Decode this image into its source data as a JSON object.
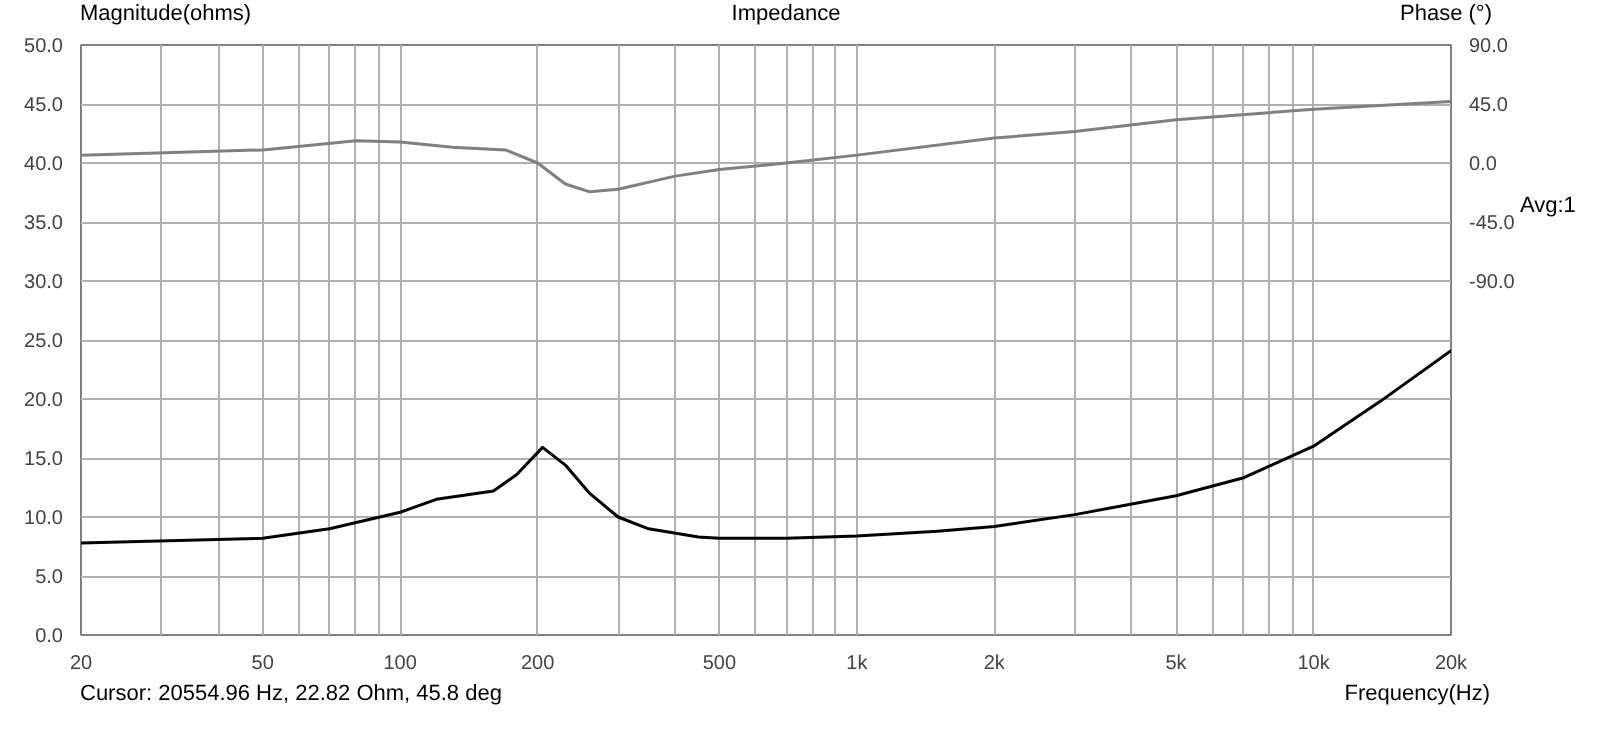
{
  "chart_data": {
    "type": "line",
    "title": "Impedance",
    "xlabel": "Frequency(Hz)",
    "ylabel": "Magnitude(ohms)",
    "y2label": "Phase (°)",
    "annotations": [
      "Cursor: 20554.96 Hz, 22.82 Ohm, 45.8 deg",
      "Avg:1"
    ],
    "log": "x",
    "grid": true,
    "line_style": "solid",
    "marker": "none",
    "xlim": [
      20,
      20000
    ],
    "xticks": [
      20,
      {
        "value": 30,
        "label": null
      },
      {
        "value": 40,
        "label": null
      },
      50,
      {
        "value": 60,
        "label": null
      },
      {
        "value": 70,
        "label": null
      },
      {
        "value": 80,
        "label": null
      },
      {
        "value": 90,
        "label": null
      },
      100,
      200,
      {
        "value": 300,
        "label": null
      },
      {
        "value": 400,
        "label": null
      },
      500,
      {
        "value": 600,
        "label": null
      },
      {
        "value": 700,
        "label": null
      },
      {
        "value": 800,
        "label": null
      },
      {
        "value": 900,
        "label": null
      },
      {
        "value": 1000,
        "label": "1k"
      },
      {
        "value": 2000,
        "label": "2k"
      },
      {
        "value": 3000,
        "label": null
      },
      {
        "value": 4000,
        "label": null
      },
      {
        "value": 5000,
        "label": "5k"
      },
      {
        "value": 6000,
        "label": null
      },
      {
        "value": 7000,
        "label": null
      },
      {
        "value": 8000,
        "label": null
      },
      {
        "value": 9000,
        "label": null
      },
      {
        "value": 10000,
        "label": "10k"
      },
      {
        "value": 20000,
        "label": "20k"
      }
    ],
    "ylim": [
      0,
      50
    ],
    "yticks": [
      {
        "value": 0,
        "label": "0.0"
      },
      {
        "value": 5,
        "label": "5.0"
      },
      {
        "value": 10,
        "label": "10.0"
      },
      {
        "value": 15,
        "label": "15.0"
      },
      {
        "value": 20,
        "label": "20.0"
      },
      {
        "value": 25,
        "label": "25.0"
      },
      {
        "value": 30,
        "label": "30.0"
      },
      {
        "value": 35,
        "label": "35.0"
      },
      {
        "value": 40,
        "label": "40.0"
      },
      {
        "value": 45,
        "label": "45.0"
      },
      {
        "value": 50,
        "label": "50.0"
      }
    ],
    "y2lim": [
      -360,
      90
    ],
    "y2ticks": [
      {
        "value": 90,
        "label": "90.0"
      },
      {
        "value": 45,
        "label": "45.0"
      },
      {
        "value": 0,
        "label": "0.0"
      },
      {
        "value": -45,
        "label": "-45.0"
      },
      {
        "value": -90,
        "label": "-90.0"
      }
    ],
    "series": [
      {
        "color": "#000000",
        "x": [
          20,
          50,
          70,
          100,
          120,
          160,
          180,
          205,
          230,
          260,
          300,
          350,
          450,
          500,
          700,
          1000,
          1500,
          2000,
          3000,
          5000,
          7000,
          10000,
          14000,
          20000
        ],
        "values": [
          7.8,
          8.2,
          9,
          10.4,
          11.5,
          12.2,
          13.6,
          15.9,
          14.4,
          12,
          10,
          9,
          8.3,
          8.2,
          8.2,
          8.4,
          8.8,
          9.2,
          10.2,
          11.8,
          13.3,
          16,
          19.8,
          24.1
        ]
      },
      {
        "color": "#808080",
        "axis": "y2",
        "x": [
          20,
          50,
          80,
          100,
          130,
          170,
          200,
          230,
          260,
          300,
          400,
          500,
          700,
          1000,
          2000,
          3000,
          5000,
          10000,
          20000
        ],
        "values": [
          6,
          10,
          17,
          16,
          12,
          10,
          0,
          -16,
          -22,
          -20,
          -10,
          -5,
          0,
          6,
          19,
          24,
          33,
          41,
          47
        ]
      }
    ]
  }
}
